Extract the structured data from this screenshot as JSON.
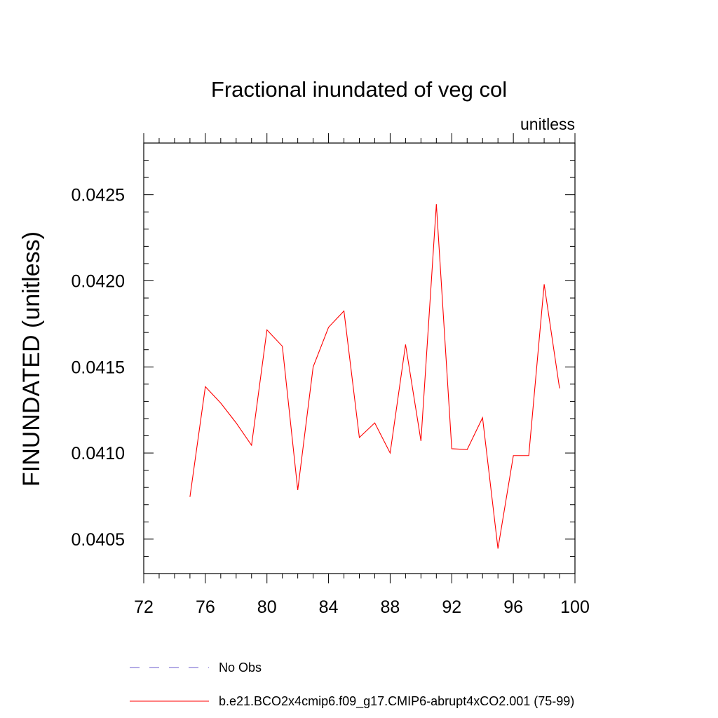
{
  "chart_data": {
    "type": "line",
    "title": "Fractional inundated of veg col",
    "units_label": "unitless",
    "ylabel": "FINUNDATED  (unitless)",
    "xlabel": "",
    "xlim": [
      72,
      100
    ],
    "ylim": [
      0.0403,
      0.0428
    ],
    "x_ticks": [
      72,
      76,
      80,
      84,
      88,
      92,
      96,
      100
    ],
    "x_tick_labels": [
      "72",
      "76",
      "80",
      "84",
      "88",
      "92",
      "96",
      "100"
    ],
    "y_ticks": [
      0.0405,
      0.041,
      0.0415,
      0.042,
      0.0425
    ],
    "y_tick_labels": [
      "0.0405",
      "0.0410",
      "0.0415",
      "0.0420",
      "0.0425"
    ],
    "grid": false,
    "legend_placement": "bottom",
    "series": [
      {
        "name": "b.e21.BCO2x4cmip6.f09_g17.CMIP6-abrupt4xCO2.001 (75-99)",
        "color": "#ff0000",
        "dash": "solid",
        "x": [
          75,
          76,
          77,
          78,
          79,
          80,
          81,
          82,
          83,
          84,
          85,
          86,
          87,
          88,
          89,
          90,
          91,
          92,
          93,
          94,
          95,
          96,
          97,
          98,
          99
        ],
        "y": [
          0.040745,
          0.041385,
          0.04129,
          0.041175,
          0.041045,
          0.041715,
          0.04162,
          0.040785,
          0.0415,
          0.04173,
          0.041825,
          0.04109,
          0.041175,
          0.041,
          0.04163,
          0.04107,
          0.042445,
          0.041025,
          0.04102,
          0.041205,
          0.040445,
          0.040985,
          0.040985,
          0.04198,
          0.041375
        ]
      },
      {
        "name": "No Obs",
        "color": "#6a5acd",
        "dash": "dashed",
        "x": [],
        "y": []
      }
    ]
  }
}
